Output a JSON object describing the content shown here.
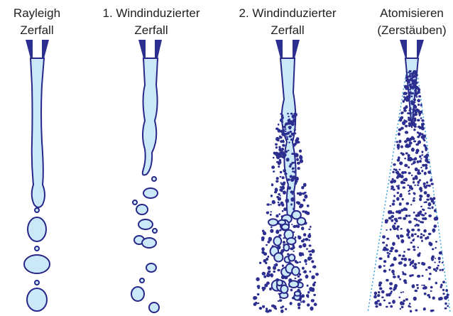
{
  "panels": [
    {
      "title": [
        "Rayleigh",
        "Zerfall"
      ]
    },
    {
      "title": [
        "1. Windinduzierter",
        "Zerfall"
      ]
    },
    {
      "title": [
        "2. Windinduzierter",
        "Zerfall"
      ]
    },
    {
      "title": [
        "Atomisieren",
        "(Zerstäuben)"
      ]
    }
  ]
}
